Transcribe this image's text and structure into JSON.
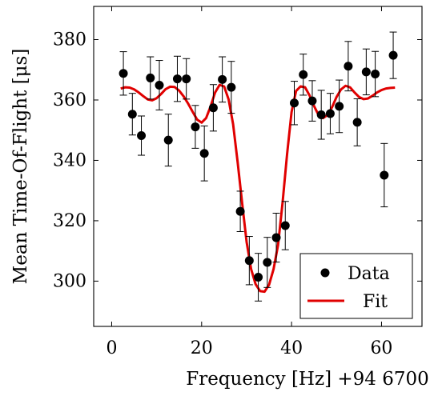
{
  "chart_data": {
    "type": "scatter",
    "title": "",
    "xlabel": "Frequency [Hz] +94 6700",
    "ylabel": "Mean Time-Of-Flight [μs]",
    "xlim": [
      -4,
      69
    ],
    "ylim": [
      285,
      391
    ],
    "x_ticks": [
      0,
      20,
      40,
      60
    ],
    "y_ticks": [
      300,
      320,
      340,
      360,
      380
    ],
    "x_tick_labels": [
      "0",
      "20",
      "40",
      "60"
    ],
    "y_tick_labels": [
      "300",
      "320",
      "340",
      "360",
      "380"
    ],
    "grid": false,
    "legend_position": "bottom-right",
    "series": [
      {
        "name": "Data",
        "kind": "points-with-errorbars",
        "color": "#000000",
        "x": [
          2.6,
          4.6,
          6.6,
          8.6,
          10.6,
          12.6,
          14.6,
          16.6,
          18.6,
          20.6,
          22.6,
          24.6,
          26.6,
          28.6,
          30.6,
          32.6,
          34.6,
          36.6,
          38.6,
          40.6,
          42.6,
          44.6,
          46.6,
          48.6,
          50.6,
          52.6,
          54.6,
          56.6,
          58.6,
          60.6,
          62.6
        ],
        "y": [
          368.8,
          355.3,
          348.2,
          367.3,
          364.9,
          346.7,
          367.0,
          367.0,
          351.1,
          342.3,
          357.4,
          366.8,
          364.2,
          323.1,
          306.8,
          301.3,
          306.2,
          314.4,
          318.4,
          359.0,
          368.4,
          359.7,
          355.1,
          355.5,
          357.9,
          371.2,
          352.6,
          369.3,
          368.6,
          335.1,
          374.8
        ],
        "err": [
          7.2,
          6.9,
          6.5,
          7.0,
          8.2,
          8.6,
          7.5,
          6.7,
          7.1,
          9.1,
          7.7,
          7.5,
          8.6,
          6.7,
          8.0,
          7.9,
          8.3,
          8.1,
          8.0,
          7.2,
          6.8,
          6.7,
          8.1,
          6.7,
          8.7,
          8.2,
          7.8,
          7.6,
          7.5,
          10.5,
          7.7
        ]
      },
      {
        "name": "Fit",
        "kind": "line",
        "color": "#e00000",
        "x": [
          2,
          3,
          4,
          5,
          6,
          7,
          8,
          9,
          10,
          11,
          12,
          13,
          14,
          15,
          16,
          17,
          18,
          19,
          20,
          21,
          22,
          23,
          24,
          25,
          26,
          27,
          28,
          29,
          30,
          31,
          32,
          33,
          34,
          35,
          36,
          37,
          38,
          39,
          40,
          41,
          42,
          43,
          44,
          45,
          46,
          47,
          48,
          49,
          50,
          51,
          52,
          53,
          54,
          55,
          56,
          57,
          58,
          59,
          60,
          61,
          62,
          63
        ],
        "y": [
          363.8,
          364.2,
          364.1,
          363.5,
          362.5,
          361.3,
          360.2,
          359.9,
          360.6,
          362.0,
          363.6,
          364.4,
          364.3,
          363.1,
          361.2,
          358.8,
          356.1,
          353.5,
          352.5,
          354.0,
          357.9,
          362.5,
          365.0,
          364.5,
          360.2,
          352.0,
          339.5,
          326.0,
          313.0,
          304.0,
          299.0,
          296.7,
          296.5,
          298.8,
          304.0,
          312.0,
          326.0,
          342.0,
          356.0,
          363.0,
          364.5,
          364.2,
          361.5,
          358.0,
          355.0,
          354.0,
          355.0,
          357.6,
          361.0,
          363.5,
          364.7,
          364.2,
          362.5,
          361.0,
          360.3,
          360.5,
          361.4,
          362.5,
          363.3,
          363.8,
          364.0,
          364.1
        ]
      }
    ]
  }
}
